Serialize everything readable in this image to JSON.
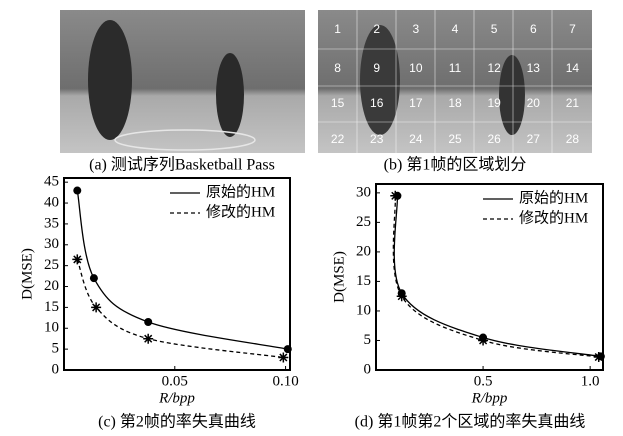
{
  "photos": [
    {
      "caption": "(a) 测试序列Basketball Pass"
    },
    {
      "caption": "(b) 第1帧的区域划分",
      "region_labels": [
        1,
        2,
        3,
        4,
        5,
        6,
        7,
        8,
        9,
        10,
        11,
        12,
        13,
        14,
        15,
        16,
        17,
        18,
        19,
        20,
        21,
        22,
        23,
        24,
        25,
        26,
        27,
        28
      ]
    }
  ],
  "chart_data": [
    {
      "type": "line",
      "caption": "(c) 第2帧的率失真曲线",
      "x_label": "R/bpp",
      "y_label": "D(MSE)",
      "xlim": [
        0,
        0.102
      ],
      "xticks": [
        0.05,
        {
          "value": 0.1,
          "label": "0.10"
        }
      ],
      "ylim": [
        0,
        46
      ],
      "yticks": [
        0,
        5,
        10,
        15,
        20,
        25,
        30,
        35,
        40,
        45
      ],
      "series": [
        {
          "name": "原始的HM",
          "color": "#000000",
          "dash": "solid",
          "marker": "circle",
          "x": [
            0.006,
            0.0135,
            0.038,
            0.101
          ],
          "values": [
            43,
            22,
            11.5,
            5
          ]
        },
        {
          "name": "修改的HM",
          "color": "#000000",
          "dash": "dashed",
          "marker": "star",
          "x": [
            0.006,
            0.0145,
            0.038,
            0.099
          ],
          "values": [
            26.5,
            15,
            7.5,
            3
          ]
        }
      ]
    },
    {
      "type": "line",
      "caption": "(d) 第1帧第2个区域的率失真曲线",
      "x_label": "R/bpp",
      "y_label": "D(MSE)",
      "xlim": [
        0,
        1.06
      ],
      "xticks": [
        0.5,
        {
          "value": 1,
          "label": "1.0"
        }
      ],
      "ylim": [
        0,
        31.5
      ],
      "yticks": [
        0,
        5,
        10,
        15,
        20,
        25,
        30
      ],
      "series": [
        {
          "name": "原始的HM",
          "color": "#000000",
          "dash": "solid",
          "marker": "circle",
          "x": [
            0.1,
            0.12,
            0.5,
            1.05
          ],
          "values": [
            29.5,
            13,
            5.5,
            2.3
          ]
        },
        {
          "name": "修改的HM",
          "color": "#000000",
          "dash": "dashed",
          "marker": "star",
          "x": [
            0.09,
            0.12,
            0.5,
            1.04
          ],
          "values": [
            29.5,
            12.5,
            5,
            2.2
          ]
        }
      ]
    }
  ]
}
